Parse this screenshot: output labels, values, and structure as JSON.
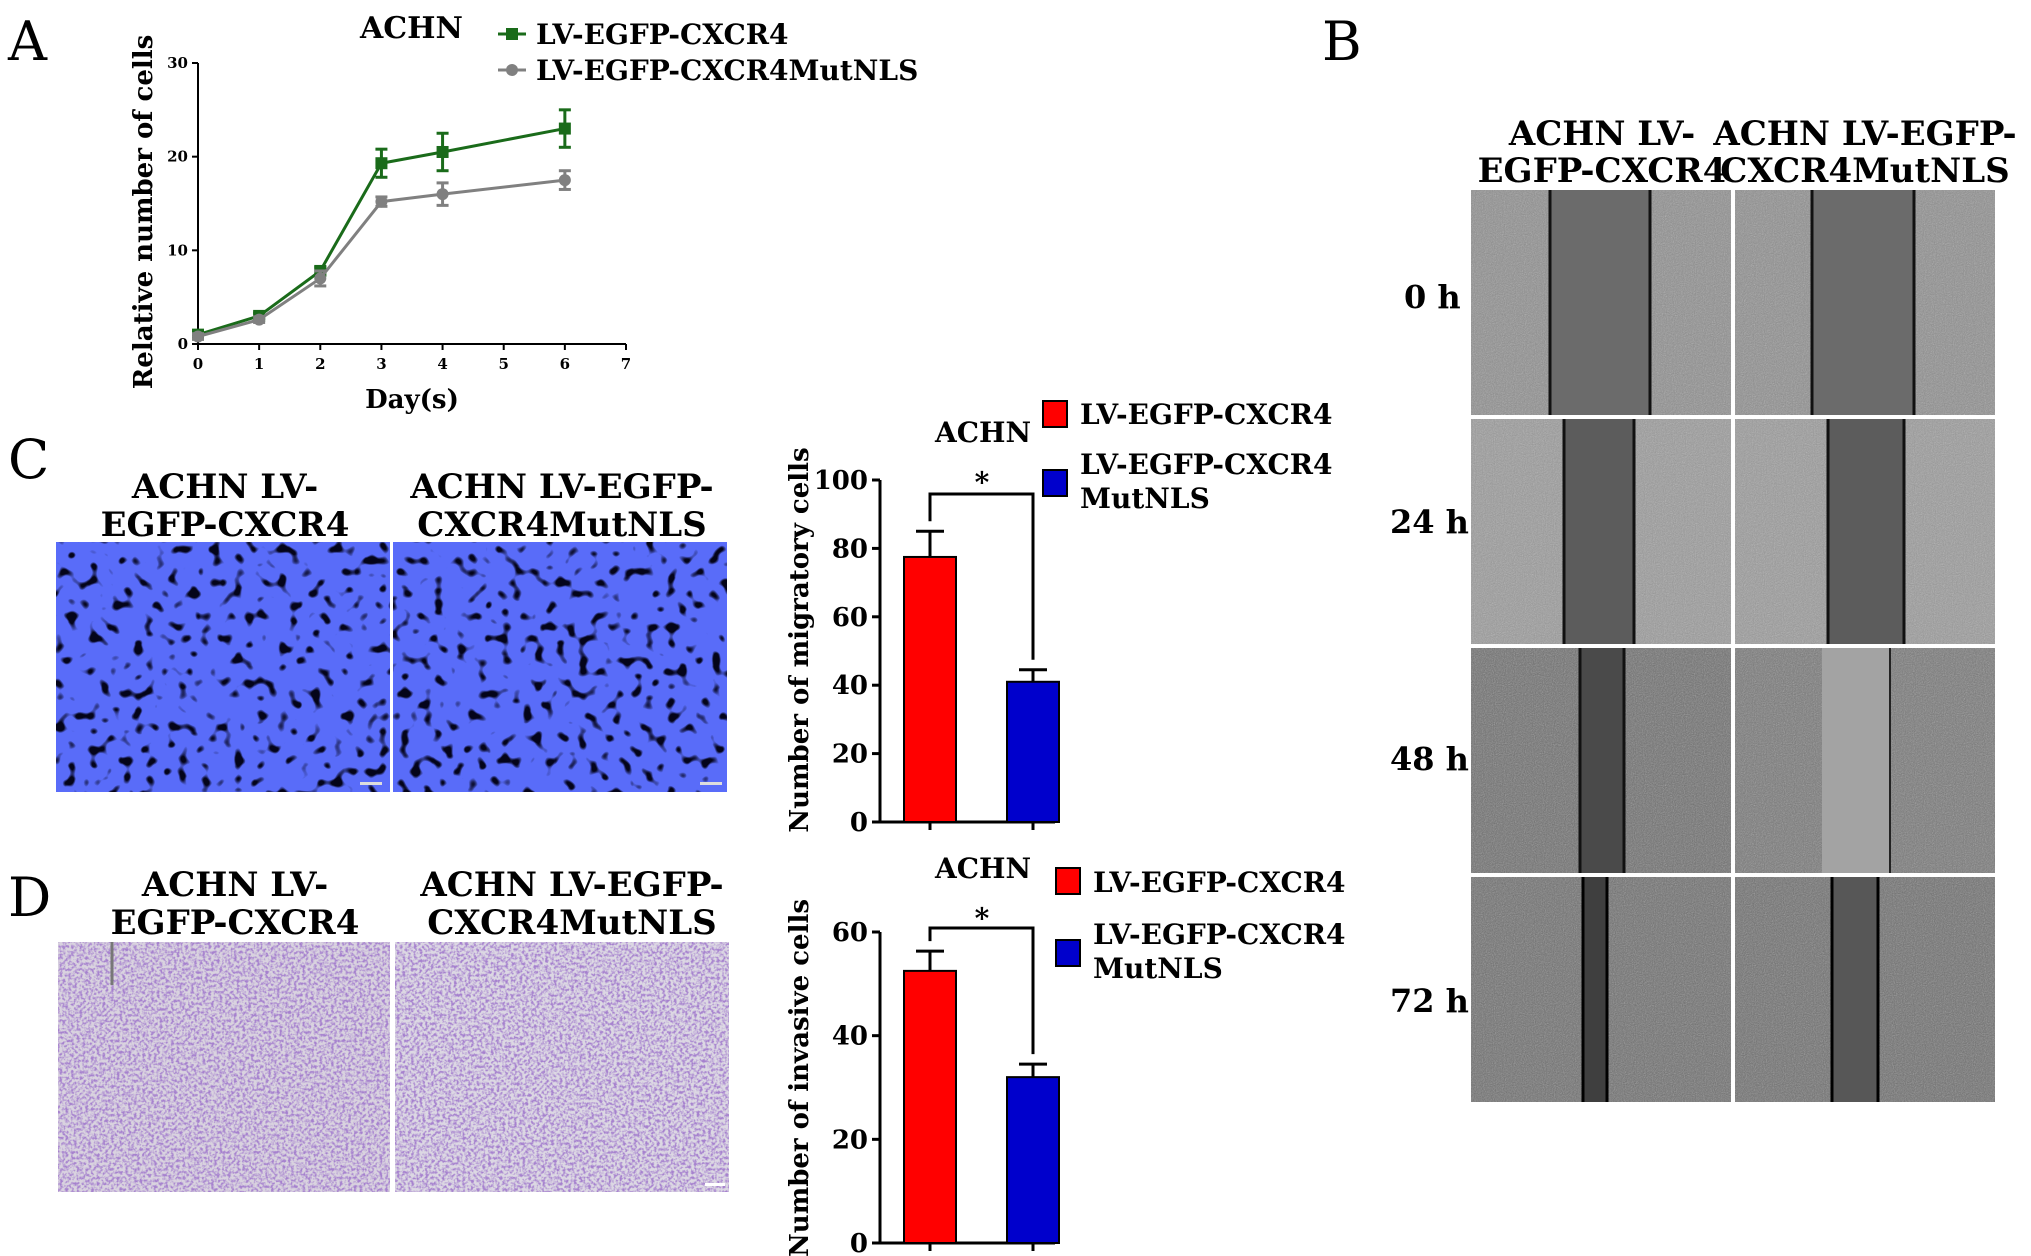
{
  "panels": {
    "A": {
      "letter": "A",
      "title": "ACHN",
      "legend": [
        "LV-EGFP-CXCR4",
        "LV-EGFP-CXCR4MutNLS"
      ],
      "ylabel": "Relative number of cells",
      "xlabel": "Day(s)"
    },
    "B": {
      "letter": "B",
      "col_labels": [
        [
          "ACHN LV-",
          "EGFP-CXCR4"
        ],
        [
          "ACHN LV-EGFP-",
          "CXCR4MutNLS"
        ]
      ],
      "row_labels": [
        "0 h",
        "24 h",
        "48 h",
        "72 h"
      ]
    },
    "C": {
      "letter": "C",
      "image_labels": [
        [
          "ACHN LV-",
          "EGFP-CXCR4"
        ],
        [
          "ACHN LV-EGFP-",
          "CXCR4MutNLS"
        ]
      ],
      "chart_title": "ACHN",
      "legend": [
        "LV-EGFP-CXCR4",
        "LV-EGFP-CXCR4",
        "MutNLS"
      ],
      "ylabel": "Number of migratory cells",
      "sig": "*"
    },
    "D": {
      "letter": "D",
      "image_labels": [
        [
          "ACHN LV-",
          "EGFP-CXCR4"
        ],
        [
          "ACHN LV-EGFP-",
          "CXCR4MutNLS"
        ]
      ],
      "chart_title": "ACHN",
      "legend": [
        "LV-EGFP-CXCR4",
        "LV-EGFP-CXCR4",
        "MutNLS"
      ],
      "ylabel": "Number of invasive cells",
      "sig": "*"
    }
  },
  "colors": {
    "series1": "#1a6b1a",
    "series2": "#808080",
    "bar1": "#ff0000",
    "bar2": "#0000cc"
  },
  "chart_data": [
    {
      "type": "line",
      "title": "ACHN",
      "xlabel": "Day(s)",
      "ylabel": "Relative number of cells",
      "xlim": [
        0,
        7
      ],
      "ylim": [
        0,
        30
      ],
      "xticks": [
        0,
        1,
        2,
        3,
        4,
        5,
        6,
        7
      ],
      "yticks": [
        0,
        10,
        20,
        30
      ],
      "series": [
        {
          "name": "LV-EGFP-CXCR4",
          "x": [
            0,
            1,
            2,
            3,
            4,
            6
          ],
          "y": [
            1,
            3,
            7.8,
            19.3,
            20.5,
            23
          ],
          "err": [
            0.4,
            0.3,
            0.4,
            1.5,
            2.0,
            2.0
          ]
        },
        {
          "name": "LV-EGFP-CXCR4MutNLS",
          "x": [
            0,
            1,
            2,
            3,
            4,
            6
          ],
          "y": [
            0.8,
            2.6,
            7,
            15.2,
            16,
            17.5
          ],
          "err": [
            0.3,
            0.3,
            0.8,
            0.5,
            1.2,
            1.0
          ]
        }
      ]
    },
    {
      "type": "bar",
      "title": "ACHN",
      "ylabel": "Number of migratory cells",
      "ylim": [
        0,
        100
      ],
      "yticks": [
        0,
        20,
        40,
        60,
        80,
        100
      ],
      "categories": [
        "LV-EGFP-CXCR4",
        "LV-EGFP-CXCR4 MutNLS"
      ],
      "values": [
        77.5,
        41
      ],
      "errors": [
        7.5,
        3.5
      ]
    },
    {
      "type": "bar",
      "title": "ACHN",
      "ylabel": "Number of invasive cells",
      "ylim": [
        0,
        60
      ],
      "yticks": [
        0,
        20,
        40,
        60
      ],
      "categories": [
        "LV-EGFP-CXCR4",
        "LV-EGFP-CXCR4 MutNLS"
      ],
      "values": [
        52.5,
        32
      ],
      "errors": [
        3.8,
        2.5
      ]
    }
  ]
}
